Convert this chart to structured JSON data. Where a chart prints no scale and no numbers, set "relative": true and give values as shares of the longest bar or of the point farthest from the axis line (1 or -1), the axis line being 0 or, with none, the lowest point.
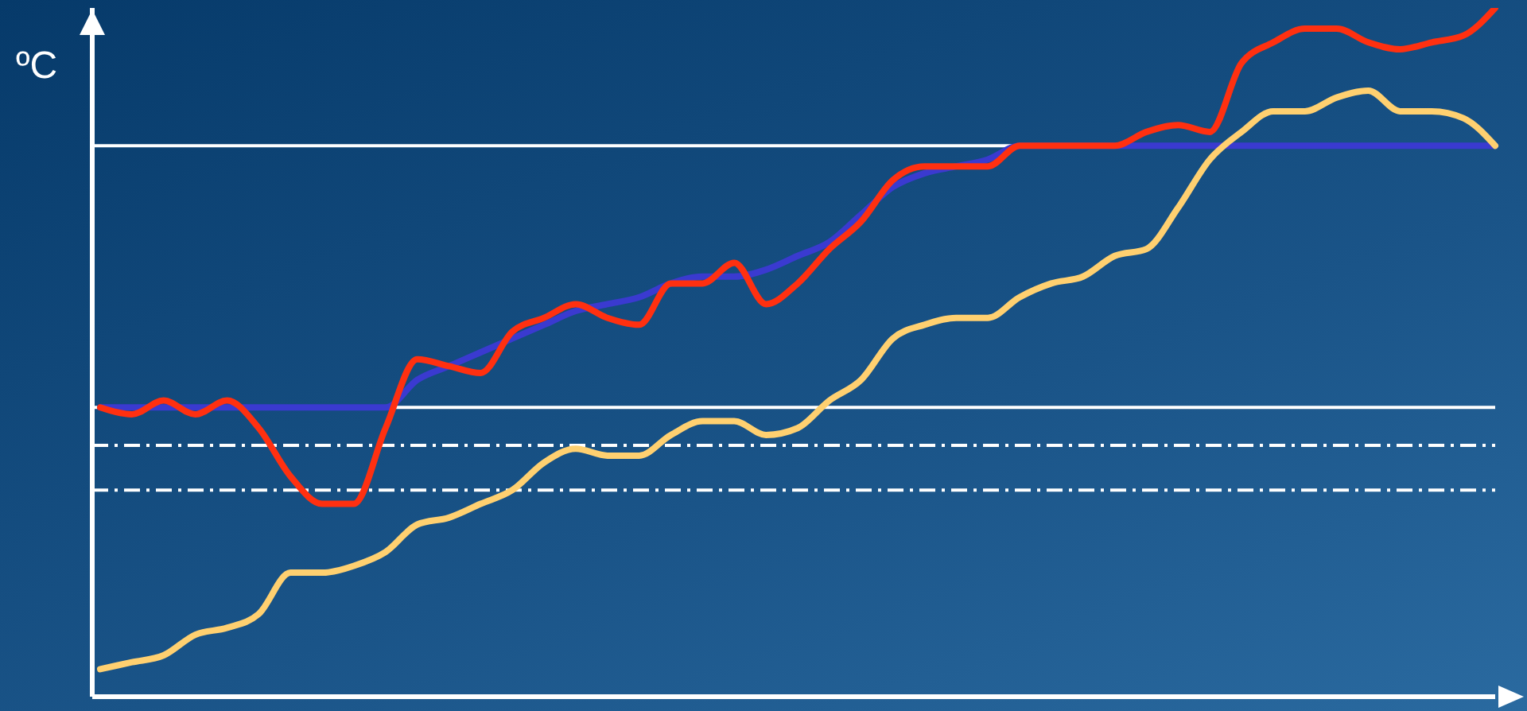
{
  "chart_data": {
    "type": "line",
    "relative": true,
    "ylabel": "ºC",
    "categories": [
      null,
      null,
      null,
      null,
      null,
      null,
      null,
      null,
      null,
      null,
      null,
      null,
      null,
      null,
      null,
      null,
      null,
      null,
      null,
      null,
      null,
      null,
      null,
      null,
      null,
      null,
      null,
      null,
      null,
      null,
      null,
      null,
      null,
      null,
      null,
      null,
      null,
      null,
      null,
      null,
      null,
      null,
      null,
      null,
      null
    ],
    "series": [
      {
        "color": "#3a3ad0",
        "values": [
          0.42,
          0.42,
          0.42,
          0.42,
          0.42,
          0.42,
          0.42,
          0.42,
          0.42,
          0.42,
          0.46,
          0.48,
          0.5,
          0.52,
          0.54,
          0.56,
          0.57,
          0.58,
          0.6,
          0.61,
          0.61,
          0.62,
          0.64,
          0.66,
          0.7,
          0.74,
          0.76,
          0.77,
          0.78,
          0.8,
          0.8,
          0.8,
          0.8,
          0.8,
          0.8,
          0.8,
          0.8,
          0.8,
          0.8,
          0.8,
          0.8,
          0.8,
          0.8,
          0.8,
          0.8
        ]
      },
      {
        "color": "#ff3010",
        "values": [
          0.42,
          0.41,
          0.43,
          0.41,
          0.43,
          0.39,
          0.32,
          0.28,
          0.28,
          0.39,
          0.49,
          0.48,
          0.47,
          0.53,
          0.55,
          0.57,
          0.55,
          0.54,
          0.6,
          0.6,
          0.63,
          0.57,
          0.6,
          0.65,
          0.69,
          0.75,
          0.77,
          0.77,
          0.77,
          0.8,
          0.8,
          0.8,
          0.8,
          0.82,
          0.83,
          0.82,
          0.92,
          0.95,
          0.97,
          0.97,
          0.95,
          0.94,
          0.95,
          0.96,
          1
        ]
      },
      {
        "color": "#ffd070",
        "values": [
          0.04,
          0.05,
          0.06,
          0.09,
          0.1,
          0.12,
          0.18,
          0.18,
          0.19,
          0.21,
          0.25,
          0.26,
          0.28,
          0.3,
          0.34,
          0.36,
          0.35,
          0.35,
          0.38,
          0.4,
          0.4,
          0.38,
          0.39,
          0.43,
          0.46,
          0.52,
          0.54,
          0.55,
          0.55,
          0.58,
          0.6,
          0.61,
          0.64,
          0.65,
          0.71,
          0.78,
          0.82,
          0.85,
          0.85,
          0.87,
          0.88,
          0.85,
          0.85,
          0.84,
          0.8
        ]
      }
    ],
    "ref_lines": [
      {
        "axis": "y",
        "value": 0.8,
        "color": "#ffffff",
        "line_style": "solid"
      },
      {
        "axis": "y",
        "value": 0.42,
        "color": "#ffffff",
        "line_style": "solid"
      },
      {
        "axis": "y",
        "value": 0.365,
        "color": "#ffffff",
        "line_style": "dashdot"
      },
      {
        "axis": "y",
        "value": 0.3,
        "color": "#ffffff",
        "line_style": "dashdot"
      }
    ],
    "grid": false,
    "legend": false,
    "marker": "none",
    "line_style": "solid"
  }
}
